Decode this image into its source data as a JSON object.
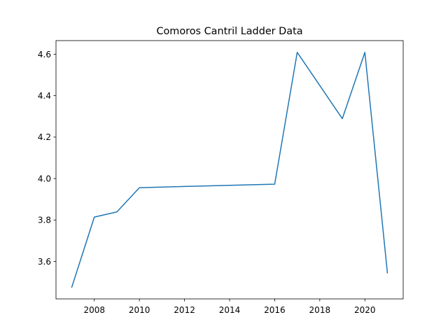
{
  "chart_data": {
    "type": "line",
    "title": "Comoros Cantril Ladder Data",
    "xlabel": "",
    "ylabel": "",
    "x": [
      2007,
      2008,
      2009,
      2010,
      2016,
      2017,
      2019,
      2020,
      2021
    ],
    "series": [
      {
        "values": [
          3.476,
          3.814,
          3.839,
          3.956,
          3.973,
          4.609,
          4.289,
          4.609,
          3.545
        ],
        "color": "#1f77b4"
      }
    ],
    "xlim": [
      2006.3,
      2021.7
    ],
    "ylim": [
      3.4193,
      4.6657
    ],
    "xticks": [
      2008,
      2010,
      2012,
      2014,
      2016,
      2018,
      2020
    ],
    "yticks": [
      3.6,
      3.8,
      4.0,
      4.2,
      4.4,
      4.6
    ],
    "xtick_labels": [
      "2008",
      "2010",
      "2012",
      "2014",
      "2016",
      "2018",
      "2020"
    ],
    "ytick_labels": [
      "3.6",
      "3.8",
      "4.0",
      "4.2",
      "4.4",
      "4.6"
    ],
    "grid": false,
    "legend": "none"
  }
}
